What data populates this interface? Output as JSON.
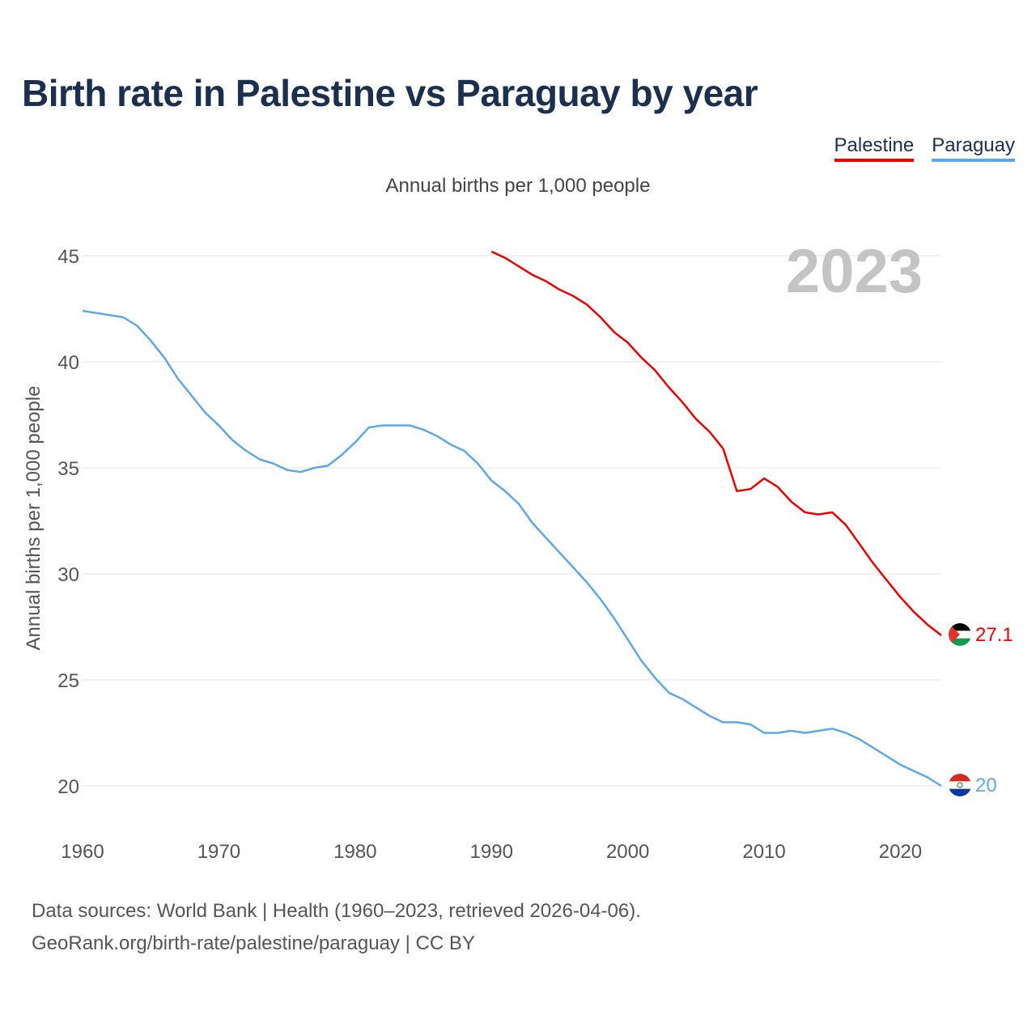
{
  "title": "Birth rate in Palestine vs Paraguay by year",
  "subtitle": "Annual births per 1,000 people",
  "legend": [
    {
      "name": "Palestine",
      "color": "#ee0000"
    },
    {
      "name": "Paraguay",
      "color": "#5fa8e8"
    }
  ],
  "year_watermark": "2023",
  "sources": {
    "line1": "Data sources: World Bank | Health (1960–2023, retrieved 2026-04-06).",
    "line2": "GeoRank.org/birth-rate/palestine/paraguay | CC BY"
  },
  "chart_data": {
    "type": "line",
    "title": "Birth rate in Palestine vs Paraguay by year",
    "xlabel": "",
    "ylabel": "Annual births per 1,000 people",
    "xlim": [
      1960,
      2023
    ],
    "ylim": [
      18.5,
      46
    ],
    "xticks": [
      1960,
      1970,
      1980,
      1990,
      2000,
      2010,
      2020
    ],
    "yticks": [
      20,
      25,
      30,
      35,
      40,
      45
    ],
    "grid": true,
    "legend_position": "top-right",
    "series": [
      {
        "name": "Palestine",
        "color": "#ee0000",
        "icon": "palestine-flag-icon",
        "end_label": "27.1",
        "x": [
          1990,
          1991,
          1992,
          1993,
          1994,
          1995,
          1996,
          1997,
          1998,
          1999,
          2000,
          2001,
          2002,
          2003,
          2004,
          2005,
          2006,
          2007,
          2008,
          2009,
          2010,
          2011,
          2012,
          2013,
          2014,
          2015,
          2016,
          2017,
          2018,
          2019,
          2020,
          2021,
          2022,
          2023
        ],
        "values": [
          45.2,
          44.9,
          44.5,
          44.1,
          43.8,
          43.4,
          43.1,
          42.7,
          42.1,
          41.4,
          40.9,
          40.2,
          39.6,
          38.8,
          38.1,
          37.3,
          36.7,
          35.9,
          33.9,
          34.0,
          34.5,
          34.1,
          33.4,
          32.9,
          32.8,
          32.9,
          32.3,
          31.4,
          30.5,
          29.7,
          28.9,
          28.2,
          27.6,
          27.1
        ]
      },
      {
        "name": "Paraguay",
        "color": "#5fa8e8",
        "icon": "paraguay-flag-icon",
        "end_label": "20",
        "x": [
          1960,
          1961,
          1962,
          1963,
          1964,
          1965,
          1966,
          1967,
          1968,
          1969,
          1970,
          1971,
          1972,
          1973,
          1974,
          1975,
          1976,
          1977,
          1978,
          1979,
          1980,
          1981,
          1982,
          1983,
          1984,
          1985,
          1986,
          1987,
          1988,
          1989,
          1990,
          1991,
          1992,
          1993,
          1994,
          1995,
          1996,
          1997,
          1998,
          1999,
          2000,
          2001,
          2002,
          2003,
          2004,
          2005,
          2006,
          2007,
          2008,
          2009,
          2010,
          2011,
          2012,
          2013,
          2014,
          2015,
          2016,
          2017,
          2018,
          2019,
          2020,
          2021,
          2022,
          2023
        ],
        "values": [
          42.4,
          42.3,
          42.2,
          42.1,
          41.7,
          41.0,
          40.2,
          39.2,
          38.4,
          37.6,
          37.0,
          36.3,
          35.8,
          35.4,
          35.2,
          34.9,
          34.8,
          35.0,
          35.1,
          35.6,
          36.2,
          36.9,
          37.0,
          37.0,
          37.0,
          36.8,
          36.5,
          36.1,
          35.8,
          35.2,
          34.4,
          33.9,
          33.3,
          32.4,
          31.7,
          31.0,
          30.3,
          29.6,
          28.8,
          27.9,
          26.9,
          25.9,
          25.1,
          24.4,
          24.1,
          23.7,
          23.3,
          23.0,
          23.0,
          22.9,
          22.5,
          22.5,
          22.6,
          22.5,
          22.6,
          22.7,
          22.5,
          22.2,
          21.8,
          21.4,
          21.0,
          20.7,
          20.4,
          20.0
        ]
      }
    ]
  }
}
